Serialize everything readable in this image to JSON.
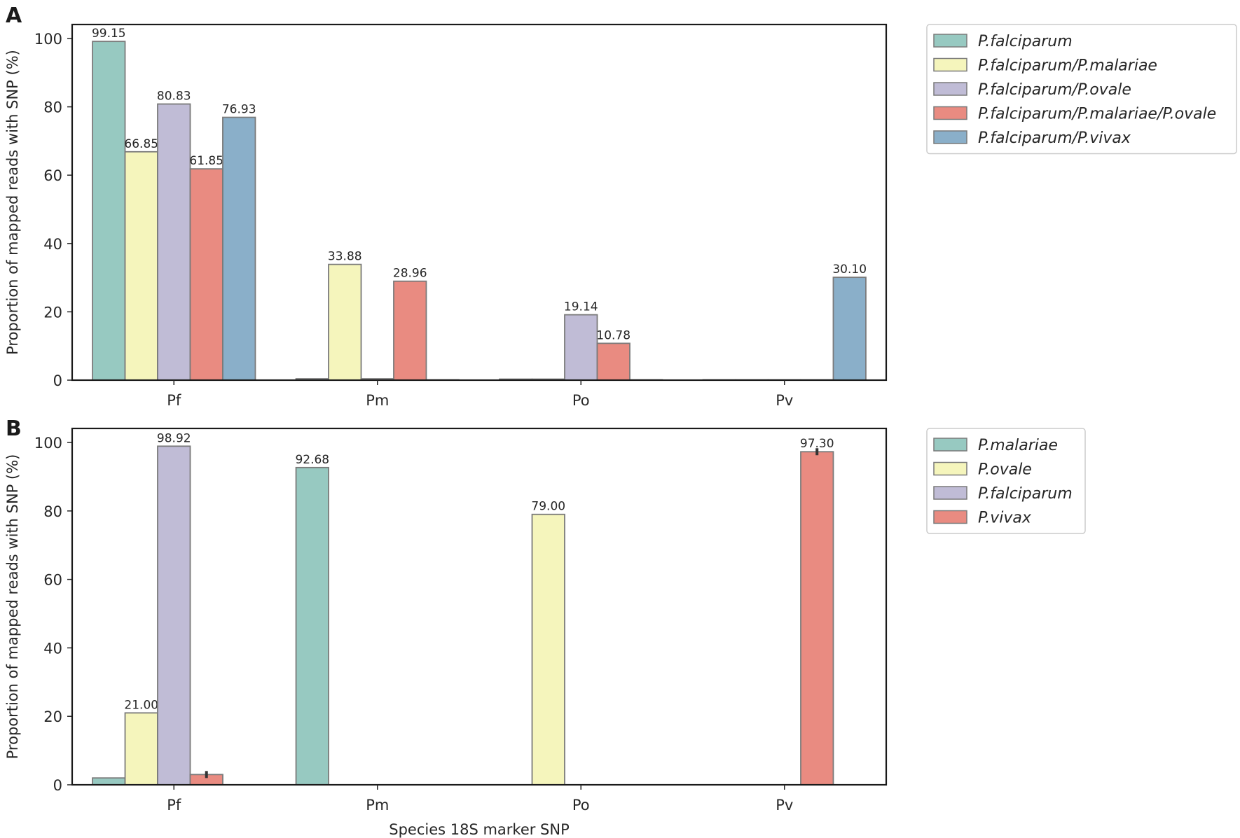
{
  "chart_data": [
    {
      "panel": "A",
      "type": "bar",
      "categories": [
        "Pf",
        "Pm",
        "Po",
        "Pv"
      ],
      "xlabel": "",
      "ylabel": "Proportion of mapped reads with SNP (%)",
      "ylim": [
        0,
        104.1
      ],
      "yticks": [
        0,
        20,
        40,
        60,
        80,
        100
      ],
      "grid": false,
      "legend_position": "right",
      "series": [
        {
          "name": "P.falciparum",
          "color": "#97c9c1",
          "values": [
            99.15,
            0.4,
            0.3,
            0.1
          ],
          "labels": [
            "99.15",
            "",
            "",
            ""
          ]
        },
        {
          "name": "P.falciparum/P.malariae",
          "color": "#f5f5bc",
          "values": [
            66.85,
            33.88,
            0.3,
            0.1
          ],
          "labels": [
            "66.85",
            "33.88",
            "",
            ""
          ]
        },
        {
          "name": "P.falciparum/P.ovale",
          "color": "#c0bcd6",
          "values": [
            80.83,
            0.4,
            19.14,
            0.1
          ],
          "labels": [
            "80.83",
            "",
            "19.14",
            ""
          ]
        },
        {
          "name": "P.falciparum/P.malariae/P.ovale",
          "color": "#e98b81",
          "values": [
            61.85,
            28.96,
            10.78,
            0.1
          ],
          "labels": [
            "61.85",
            "28.96",
            "10.78",
            ""
          ]
        },
        {
          "name": "P.falciparum/P.vivax",
          "color": "#8aafc9",
          "values": [
            76.93,
            0.1,
            0.1,
            30.1
          ],
          "labels": [
            "76.93",
            "",
            "",
            "30.10"
          ]
        }
      ]
    },
    {
      "panel": "B",
      "type": "bar",
      "categories": [
        "Pf",
        "Pm",
        "Po",
        "Pv"
      ],
      "xlabel": "Species 18S marker SNP",
      "ylabel": "Proportion of mapped reads with SNP (%)",
      "ylim": [
        0,
        104.1
      ],
      "yticks": [
        0,
        20,
        40,
        60,
        80,
        100
      ],
      "grid": false,
      "legend_position": "right",
      "series": [
        {
          "name": "P.malariae",
          "color": "#97c9c1",
          "values": [
            2.0,
            92.68,
            0,
            0
          ],
          "labels": [
            "",
            "92.68",
            "",
            ""
          ]
        },
        {
          "name": "P.ovale",
          "color": "#f5f5bc",
          "values": [
            21.0,
            0,
            79.0,
            0
          ],
          "labels": [
            "21.00",
            "",
            "79.00",
            ""
          ]
        },
        {
          "name": "P.falciparum",
          "color": "#c0bcd6",
          "values": [
            98.92,
            0,
            0,
            0
          ],
          "labels": [
            "98.92",
            "",
            "",
            ""
          ]
        },
        {
          "name": "P.vivax",
          "color": "#e98b81",
          "values": [
            3.0,
            0,
            0,
            97.3
          ],
          "labels": [
            "",
            "",
            "",
            "97.30"
          ]
        }
      ]
    }
  ]
}
